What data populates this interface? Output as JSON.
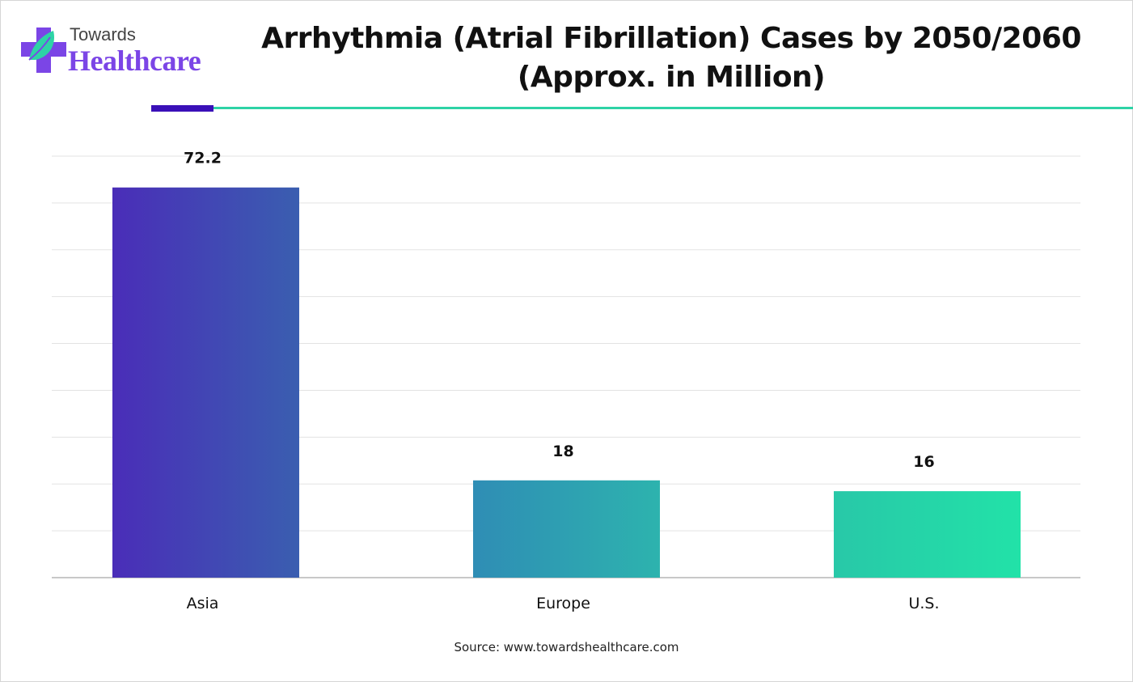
{
  "logo": {
    "line1": "Towards",
    "line2": "Healthcare"
  },
  "title_line1": "Arrhythmia (Atrial Fibrillation) Cases by 2050/2060",
  "title_line2": "(Approx. in Million)",
  "source": "Source: www.towardshealthcare.com",
  "colors": {
    "accent_dark": "#3a10b8",
    "accent_teal": "#2ed3a6",
    "brand_purple": "#7b45e6"
  },
  "chart_data": {
    "type": "bar",
    "title": "Arrhythmia (Atrial Fibrillation) Cases by 2050/2060 (Approx. in Million)",
    "categories": [
      "Asia",
      "Europe",
      "U.S."
    ],
    "values": [
      72.2,
      18,
      16
    ],
    "data_labels": [
      "72.2",
      "18",
      "16"
    ],
    "xlabel": "",
    "ylabel": "",
    "ylim": [
      0,
      78
    ],
    "grid": true,
    "y_axis_labels_shown": false,
    "bar_colors": [
      [
        "#4a2db8",
        "#3a5eb0"
      ],
      [
        "#2f8db5",
        "#2db3ae"
      ],
      [
        "#28c8a8",
        "#22e2a8"
      ]
    ]
  }
}
